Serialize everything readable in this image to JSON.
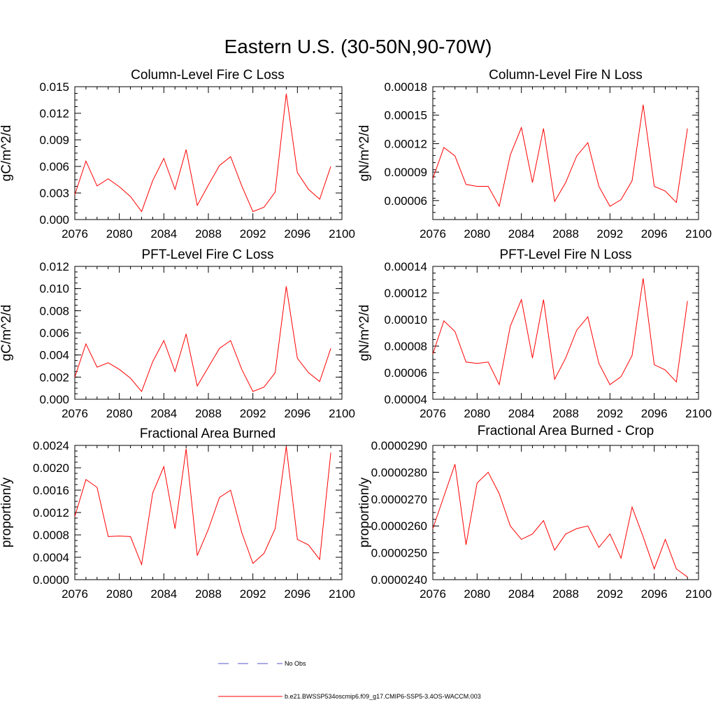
{
  "figure_title": "Eastern U.S. (30-50N,90-70W)",
  "colors": {
    "series": "#ff0000",
    "obs": "#5555cc",
    "axis": "#000000"
  },
  "legend": {
    "obs_label": "No Obs",
    "series_label": "b.e21.BWSSP534oscmip6.f09_g17.CMIP6-SSP5-3.4OS-WACCM.003"
  },
  "chart_data": [
    {
      "type": "line",
      "title": "Column-Level Fire C Loss",
      "ylabel": "gC/m^2/d",
      "xlabel": "",
      "xlim": [
        2076,
        2100
      ],
      "x_ticks": [
        2076,
        2080,
        2084,
        2088,
        2092,
        2096,
        2100
      ],
      "ylim": [
        0.0,
        0.015
      ],
      "y_ticks": [
        "0.000",
        "0.003",
        "0.006",
        "0.009",
        "0.012",
        "0.015"
      ],
      "y_tick_values": [
        0.0,
        0.003,
        0.006,
        0.009,
        0.012,
        0.015
      ],
      "x": [
        2076,
        2077,
        2078,
        2079,
        2080,
        2081,
        2082,
        2083,
        2084,
        2085,
        2086,
        2087,
        2088,
        2089,
        2090,
        2091,
        2092,
        2093,
        2094,
        2095,
        2096,
        2097,
        2098,
        2099
      ],
      "series": [
        {
          "name": "b.e21.BWSSP534oscmip6.f09_g17.CMIP6-SSP5-3.4OS-WACCM.003",
          "values": [
            0.0028,
            0.0066,
            0.0038,
            0.0046,
            0.0037,
            0.0026,
            0.0009,
            0.0044,
            0.0069,
            0.0034,
            0.0079,
            0.0016,
            0.0039,
            0.0061,
            0.0071,
            0.0038,
            0.0009,
            0.0014,
            0.0031,
            0.0142,
            0.0053,
            0.0034,
            0.0023,
            0.006
          ]
        }
      ]
    },
    {
      "type": "line",
      "title": "Column-Level Fire N Loss",
      "ylabel": "gN/m^2/d",
      "xlabel": "",
      "xlim": [
        2076,
        2100
      ],
      "x_ticks": [
        2076,
        2080,
        2084,
        2088,
        2092,
        2096,
        2100
      ],
      "ylim": [
        4e-05,
        0.00018
      ],
      "y_ticks": [
        "0.00006",
        "0.00009",
        "0.00012",
        "0.00015",
        "0.00018"
      ],
      "y_tick_values": [
        6e-05,
        9e-05,
        0.00012,
        0.00015,
        0.00018
      ],
      "x": [
        2076,
        2077,
        2078,
        2079,
        2080,
        2081,
        2082,
        2083,
        2084,
        2085,
        2086,
        2087,
        2088,
        2089,
        2090,
        2091,
        2092,
        2093,
        2094,
        2095,
        2096,
        2097,
        2098,
        2099
      ],
      "series": [
        {
          "name": "b.e21.BWSSP534oscmip6.f09_g17.CMIP6-SSP5-3.4OS-WACCM.003",
          "values": [
            8.3e-05,
            0.000116,
            0.000107,
            7.7e-05,
            7.5e-05,
            7.5e-05,
            5.4e-05,
            0.000108,
            0.000137,
            7.9e-05,
            0.000136,
            5.9e-05,
            7.9e-05,
            0.000107,
            0.000121,
            7.5e-05,
            5.4e-05,
            6.1e-05,
            8.1e-05,
            0.000161,
            7.5e-05,
            7e-05,
            5.8e-05,
            0.000136
          ]
        }
      ]
    },
    {
      "type": "line",
      "title": "PFT-Level Fire C Loss",
      "ylabel": "gC/m^2/d",
      "xlabel": "",
      "xlim": [
        2076,
        2100
      ],
      "x_ticks": [
        2076,
        2080,
        2084,
        2088,
        2092,
        2096,
        2100
      ],
      "ylim": [
        0.0,
        0.012
      ],
      "y_ticks": [
        "0.000",
        "0.002",
        "0.004",
        "0.006",
        "0.008",
        "0.010",
        "0.012"
      ],
      "y_tick_values": [
        0.0,
        0.002,
        0.004,
        0.006,
        0.008,
        0.01,
        0.012
      ],
      "x": [
        2076,
        2077,
        2078,
        2079,
        2080,
        2081,
        2082,
        2083,
        2084,
        2085,
        2086,
        2087,
        2088,
        2089,
        2090,
        2091,
        2092,
        2093,
        2094,
        2095,
        2096,
        2097,
        2098,
        2099
      ],
      "series": [
        {
          "name": "b.e21.BWSSP534oscmip6.f09_g17.CMIP6-SSP5-3.4OS-WACCM.003",
          "values": [
            0.002,
            0.005,
            0.0029,
            0.0033,
            0.0027,
            0.0019,
            0.0007,
            0.0034,
            0.0053,
            0.0025,
            0.0059,
            0.0012,
            0.0029,
            0.0046,
            0.0053,
            0.0027,
            0.0007,
            0.0011,
            0.0024,
            0.0102,
            0.0037,
            0.0024,
            0.0016,
            0.0046
          ]
        }
      ]
    },
    {
      "type": "line",
      "title": "PFT-Level Fire N Loss",
      "ylabel": "gN/m^2/d",
      "xlabel": "",
      "xlim": [
        2076,
        2100
      ],
      "x_ticks": [
        2076,
        2080,
        2084,
        2088,
        2092,
        2096,
        2100
      ],
      "ylim": [
        4e-05,
        0.00014
      ],
      "y_ticks": [
        "0.00004",
        "0.00006",
        "0.00008",
        "0.00010",
        "0.00012",
        "0.00014"
      ],
      "y_tick_values": [
        4e-05,
        6e-05,
        8e-05,
        0.0001,
        0.00012,
        0.00014
      ],
      "x": [
        2076,
        2077,
        2078,
        2079,
        2080,
        2081,
        2082,
        2083,
        2084,
        2085,
        2086,
        2087,
        2088,
        2089,
        2090,
        2091,
        2092,
        2093,
        2094,
        2095,
        2096,
        2097,
        2098,
        2099
      ],
      "series": [
        {
          "name": "b.e21.BWSSP534oscmip6.f09_g17.CMIP6-SSP5-3.4OS-WACCM.003",
          "values": [
            7.4e-05,
            9.9e-05,
            9.1e-05,
            6.8e-05,
            6.7e-05,
            6.8e-05,
            5.1e-05,
            9.5e-05,
            0.000115,
            7.1e-05,
            0.000115,
            5.5e-05,
            7.1e-05,
            9.2e-05,
            0.000102,
            6.7e-05,
            5.1e-05,
            5.7e-05,
            7.3e-05,
            0.000131,
            6.6e-05,
            6.2e-05,
            5.3e-05,
            0.000114
          ]
        }
      ]
    },
    {
      "type": "line",
      "title": "Fractional Area Burned",
      "ylabel": "proportion/y",
      "xlabel": "",
      "xlim": [
        2076,
        2100
      ],
      "x_ticks": [
        2076,
        2080,
        2084,
        2088,
        2092,
        2096,
        2100
      ],
      "ylim": [
        0.0,
        0.0024
      ],
      "y_ticks": [
        "0.0000",
        "0.0004",
        "0.0008",
        "0.0012",
        "0.0016",
        "0.0020",
        "0.0024"
      ],
      "y_tick_values": [
        0.0,
        0.0004,
        0.0008,
        0.0012,
        0.0016,
        0.002,
        0.0024
      ],
      "x": [
        2076,
        2077,
        2078,
        2079,
        2080,
        2081,
        2082,
        2083,
        2084,
        2085,
        2086,
        2087,
        2088,
        2089,
        2090,
        2091,
        2092,
        2093,
        2094,
        2095,
        2096,
        2097,
        2098,
        2099
      ],
      "series": [
        {
          "name": "b.e21.BWSSP534oscmip6.f09_g17.CMIP6-SSP5-3.4OS-WACCM.003",
          "values": [
            0.00113,
            0.00179,
            0.00165,
            0.00077,
            0.00078,
            0.00077,
            0.00027,
            0.00155,
            0.00202,
            0.00091,
            0.00234,
            0.00043,
            0.0009,
            0.00147,
            0.0016,
            0.00084,
            0.00029,
            0.00047,
            0.00091,
            0.00238,
            0.00072,
            0.00062,
            0.00036,
            0.00227
          ]
        }
      ]
    },
    {
      "type": "line",
      "title": "Fractional Area Burned - Crop",
      "ylabel": "proportion/y",
      "xlabel": "",
      "xlim": [
        2076,
        2100
      ],
      "x_ticks": [
        2076,
        2080,
        2084,
        2088,
        2092,
        2096,
        2100
      ],
      "ylim": [
        2.4e-05,
        2.9e-05
      ],
      "y_ticks": [
        "0.0000240",
        "0.0000250",
        "0.0000260",
        "0.0000270",
        "0.0000280",
        "0.0000290"
      ],
      "y_tick_values": [
        2.4e-05,
        2.5e-05,
        2.6e-05,
        2.7e-05,
        2.8e-05,
        2.9e-05
      ],
      "x": [
        2076,
        2077,
        2078,
        2079,
        2080,
        2081,
        2082,
        2083,
        2084,
        2085,
        2086,
        2087,
        2088,
        2089,
        2090,
        2091,
        2092,
        2093,
        2094,
        2095,
        2096,
        2097,
        2098,
        2099
      ],
      "series": [
        {
          "name": "b.e21.BWSSP534oscmip6.f09_g17.CMIP6-SSP5-3.4OS-WACCM.003",
          "values": [
            2.59e-05,
            2.71e-05,
            2.83e-05,
            2.53e-05,
            2.76e-05,
            2.8e-05,
            2.72e-05,
            2.6e-05,
            2.55e-05,
            2.57e-05,
            2.62e-05,
            2.51e-05,
            2.57e-05,
            2.59e-05,
            2.6e-05,
            2.52e-05,
            2.57e-05,
            2.48e-05,
            2.67e-05,
            2.56e-05,
            2.44e-05,
            2.55e-05,
            2.44e-05,
            2.41e-05
          ]
        }
      ]
    }
  ]
}
